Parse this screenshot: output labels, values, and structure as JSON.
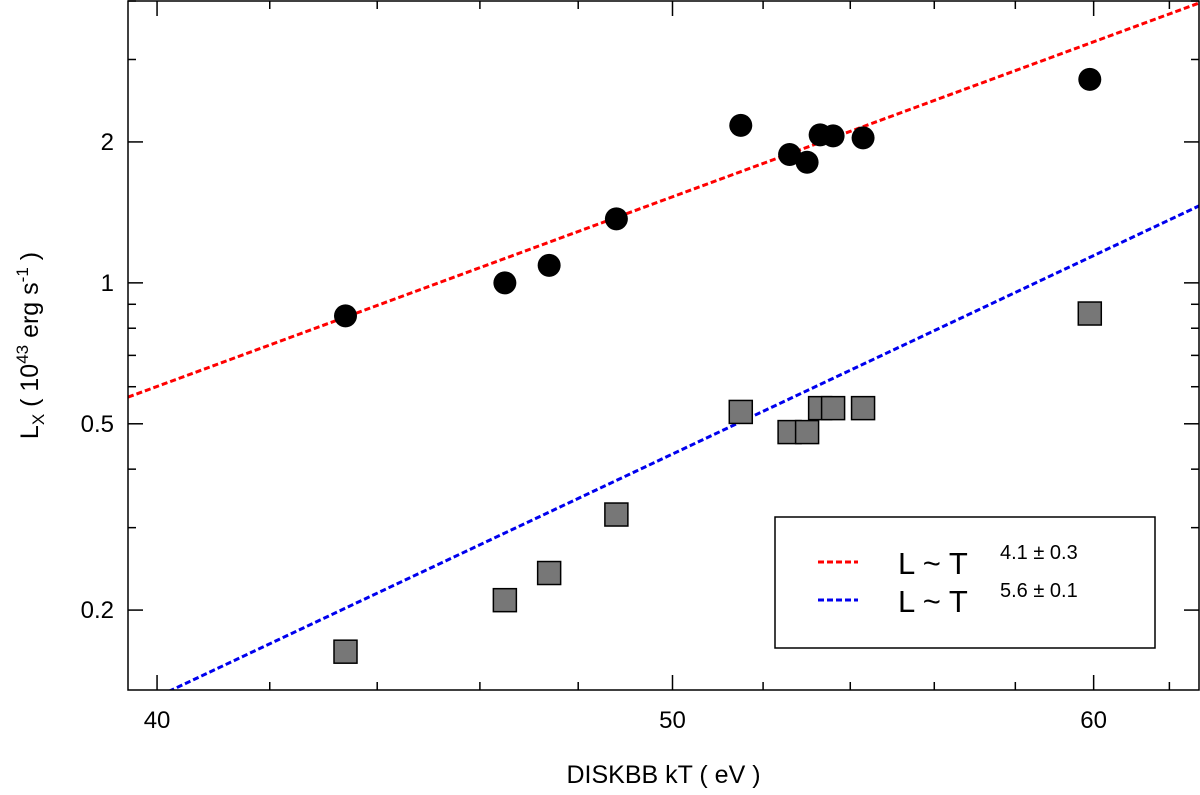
{
  "chart_data": {
    "type": "scatter",
    "xlabel": "DISKBB kT ( eV )",
    "ylabel": {
      "base": "L",
      "subscript": "X",
      "open": " ( 10",
      "exp": "43",
      "unit": " erg s",
      "unit_exp": "-1",
      "close": " )"
    },
    "xscale": "log",
    "yscale": "log",
    "xlim": [
      39.5,
      62.8
    ],
    "ylim": [
      0.135,
      4.0
    ],
    "x_ticks_major": [
      40,
      50,
      60
    ],
    "x_tick_labels": [
      "40",
      "50",
      "60"
    ],
    "x_ticks_minor": [
      42,
      44,
      46,
      48,
      52,
      54,
      56,
      58,
      62
    ],
    "y_ticks_major": [
      0.2,
      0.5,
      1,
      2
    ],
    "y_tick_labels": [
      "0.2",
      "0.5",
      "1",
      "2"
    ],
    "y_ticks_minor": [
      0.3,
      0.4,
      0.6,
      0.7,
      0.8,
      0.9,
      3,
      4
    ],
    "series": [
      {
        "name": "black circles",
        "marker": "circle",
        "color": "#000000",
        "x": [
          43.4,
          46.5,
          47.4,
          48.8,
          51.5,
          52.6,
          53.0,
          53.3,
          53.6,
          54.3,
          59.9
        ],
        "y": [
          0.85,
          1.0,
          1.09,
          1.37,
          2.17,
          1.88,
          1.81,
          2.07,
          2.06,
          2.04,
          2.72
        ],
        "yerr": [
          0.02,
          0.02,
          0.02,
          0.05,
          0.03,
          0.03,
          0.03,
          0.03,
          0.03,
          0.03,
          0.07
        ]
      },
      {
        "name": "grey squares",
        "marker": "square",
        "color": "#777777",
        "x": [
          43.4,
          46.5,
          47.4,
          48.8,
          51.5,
          52.6,
          53.0,
          53.3,
          53.6,
          54.3,
          59.9
        ],
        "y": [
          0.163,
          0.21,
          0.24,
          0.32,
          0.53,
          0.48,
          0.48,
          0.54,
          0.54,
          0.54,
          0.86
        ],
        "yerr": [
          0.003,
          0.01,
          0.01,
          0.005,
          0.01,
          0.005,
          0.005,
          0.005,
          0.005,
          0.005,
          0.04
        ]
      }
    ],
    "fit_lines": [
      {
        "name": "L ~ T^4.1",
        "color": "#ff0000",
        "x": [
          39.5,
          62.8
        ],
        "y": [
          0.57,
          3.96
        ]
      },
      {
        "name": "L ~ T^5.6",
        "color": "#0000ee",
        "x": [
          39.5,
          62.8
        ],
        "y": [
          0.122,
          1.46
        ]
      }
    ],
    "legend": {
      "location": "bottom-right",
      "entries": [
        {
          "color": "#ff0000",
          "base": "L ~ T",
          "exponent": "4.1 ± 0.3"
        },
        {
          "color": "#0000ee",
          "base": "L ~ T",
          "exponent": "5.6 ± 0.1"
        }
      ]
    }
  }
}
